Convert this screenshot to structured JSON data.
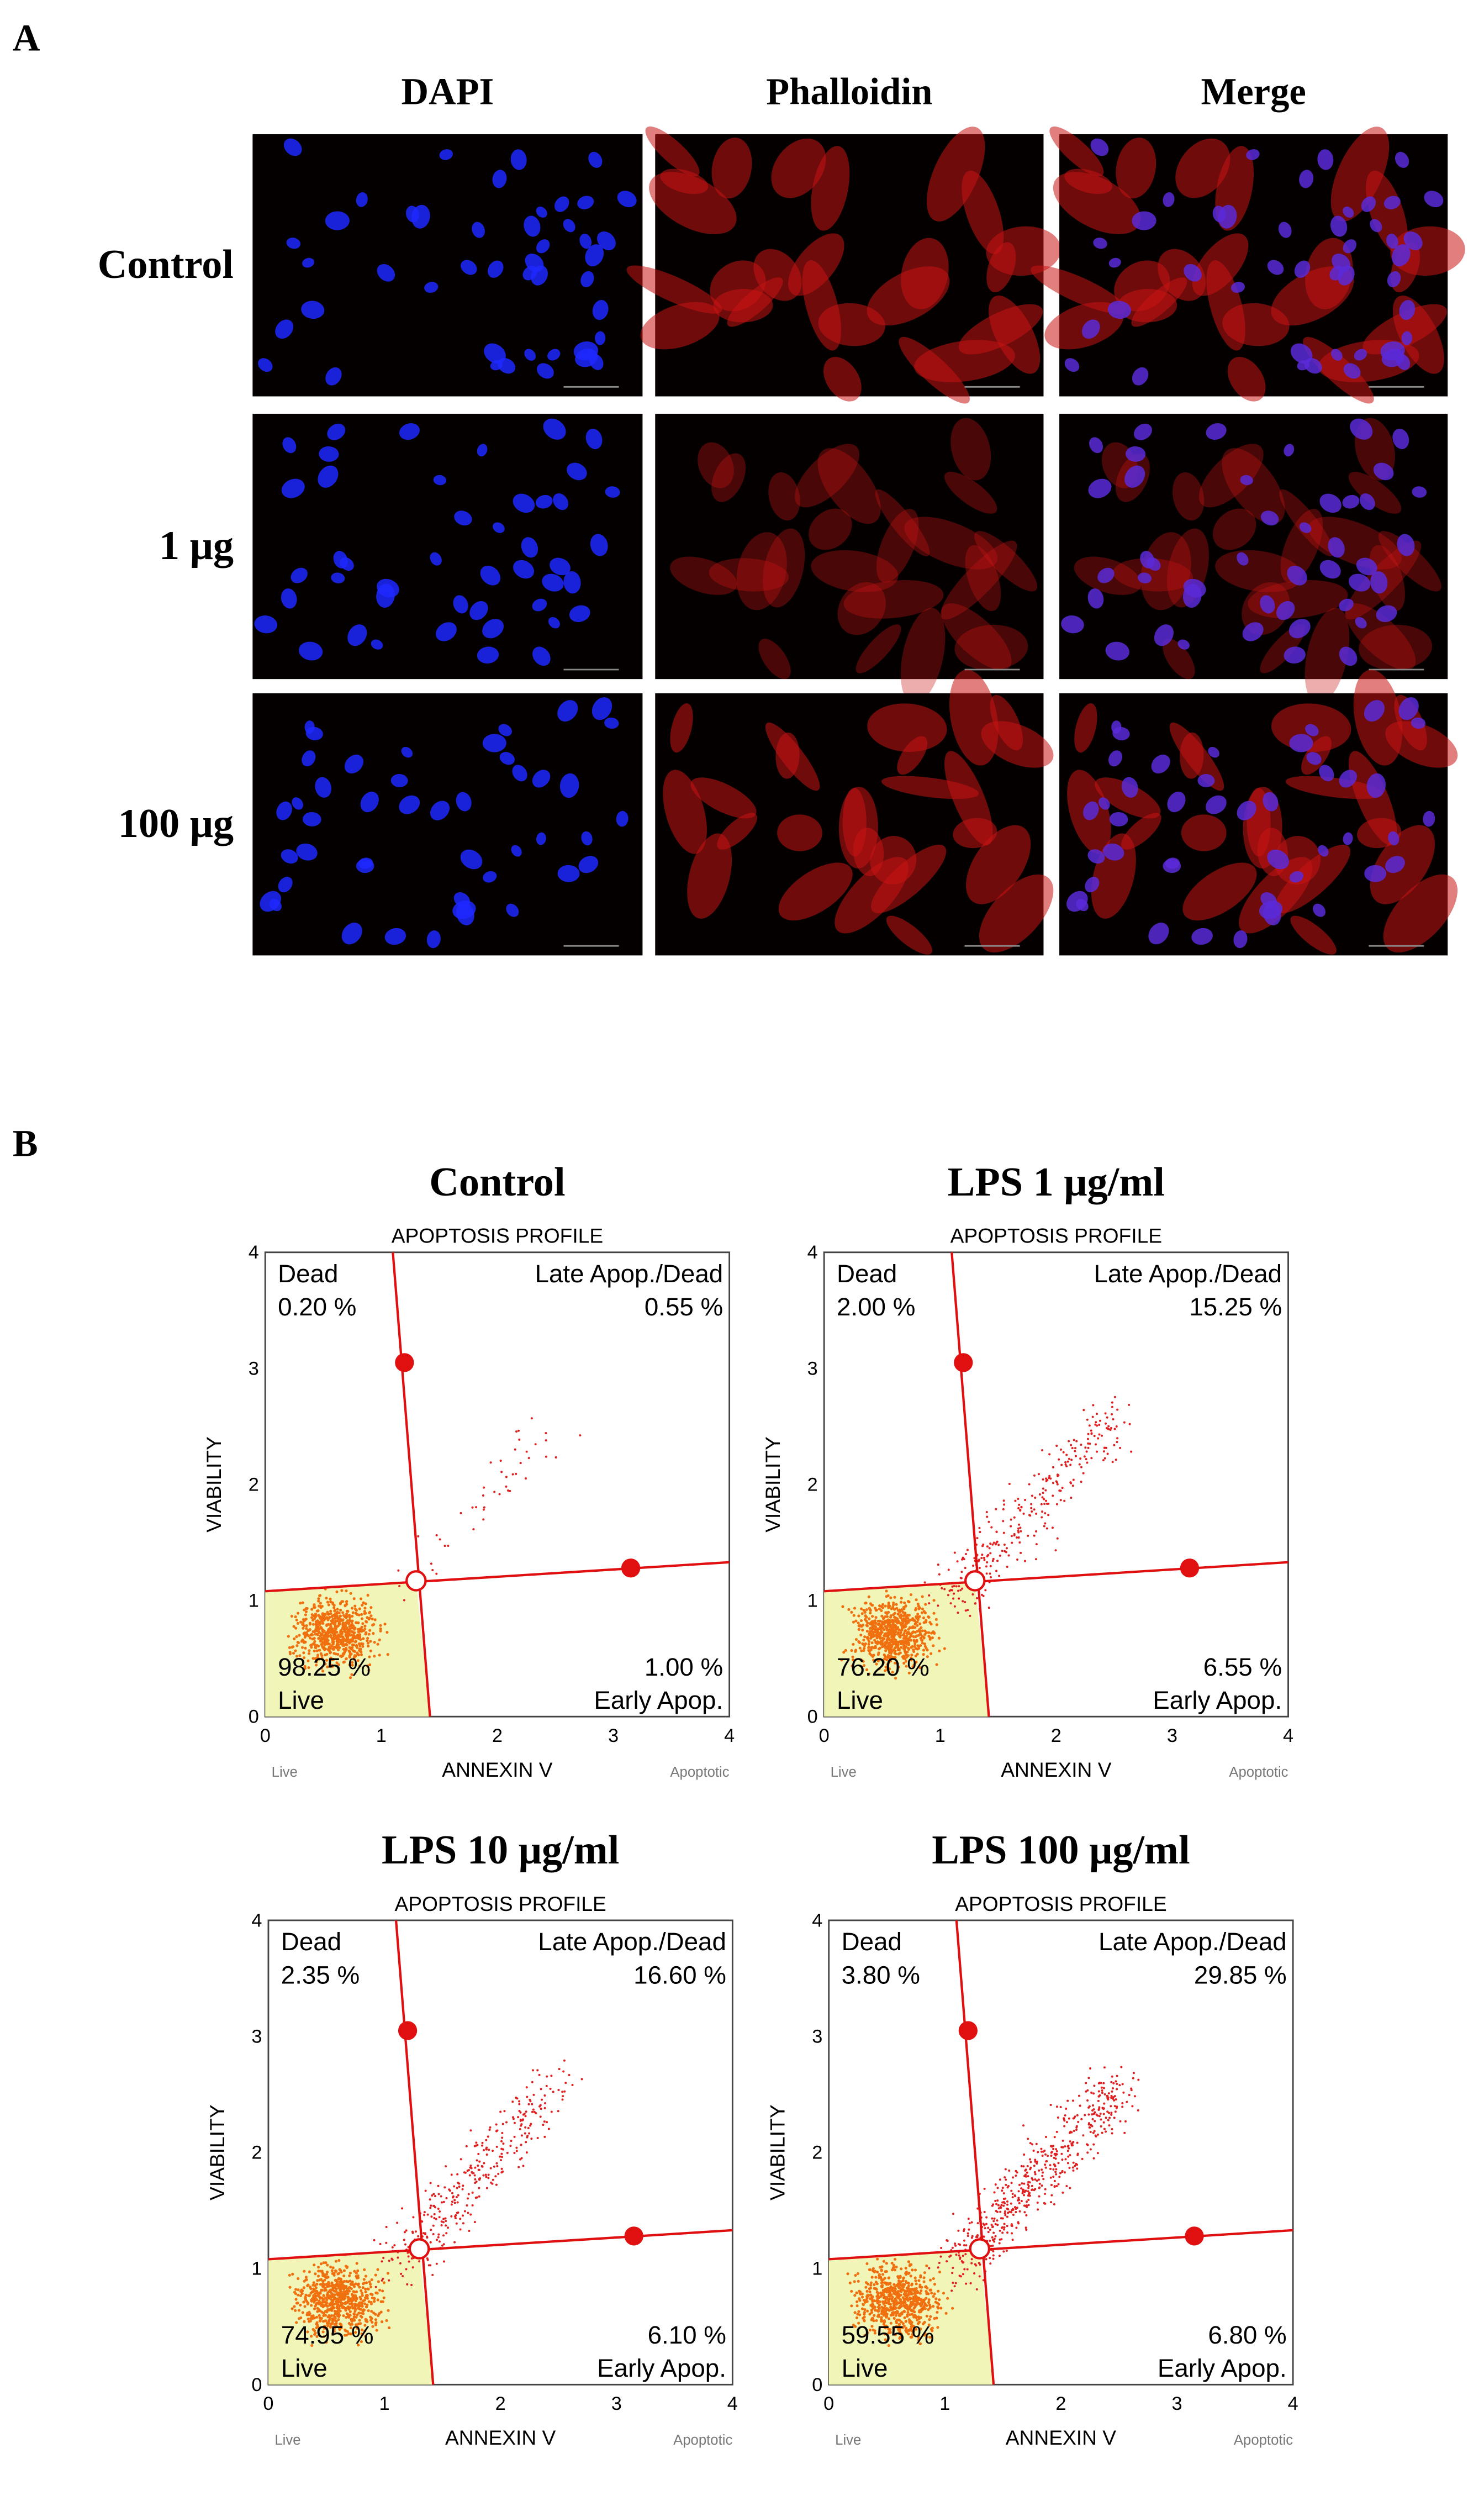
{
  "panel_a": {
    "label": "A",
    "columns": [
      "DAPI",
      "Phalloidin",
      "Merge"
    ],
    "rows": [
      "Control",
      "1 μg",
      "100 μg"
    ]
  },
  "panel_b": {
    "label": "B",
    "subtitle": "APOPTOSIS PROFILE",
    "x_label": "ANNEXIN V",
    "y_label": "VIABILITY",
    "x_note_left": "Live",
    "x_note_right": "Apoptotic",
    "ticks": [
      0,
      1,
      2,
      3,
      4
    ],
    "quadrant_names": {
      "dead": "Dead",
      "late": "Late Apop./Dead",
      "live": "Live",
      "early": "Early Apop."
    },
    "plots": [
      {
        "title": "Control",
        "dead": "0.20 %",
        "late": "0.55 %",
        "live": "98.25 %",
        "early": "1.00 %"
      },
      {
        "title": "LPS 1 μg/ml",
        "dead": "2.00 %",
        "late": "15.25 %",
        "live": "76.20 %",
        "early": "6.55 %"
      },
      {
        "title": "LPS 10 μg/ml",
        "dead": "2.35 %",
        "late": "16.60 %",
        "live": "74.95 %",
        "early": "6.10 %"
      },
      {
        "title": "LPS 100 μg/ml",
        "dead": "3.80 %",
        "late": "29.85 %",
        "live": "59.55 %",
        "early": "6.80 %"
      }
    ]
  }
}
